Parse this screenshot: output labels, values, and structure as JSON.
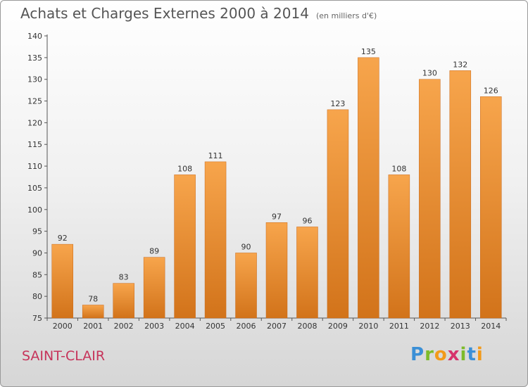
{
  "header": {
    "title": "Achats et Charges Externes 2000 à 2014",
    "unit": "(en milliers d'€)"
  },
  "footer": {
    "city": "SAINT-CLAIR",
    "brand": "Proxiti"
  },
  "colors": {
    "bar_light": "#f7a54c",
    "bar_dark": "#d2731a",
    "city": "#c6335a"
  },
  "chart_data": {
    "type": "bar",
    "title": "Achats et Charges Externes 2000 à 2014",
    "subtitle": "(en milliers d'€)",
    "xlabel": "",
    "ylabel": "",
    "categories": [
      "2000",
      "2001",
      "2002",
      "2003",
      "2004",
      "2005",
      "2006",
      "2007",
      "2008",
      "2009",
      "2010",
      "2011",
      "2012",
      "2013",
      "2014"
    ],
    "values": [
      92,
      78,
      83,
      89,
      108,
      111,
      90,
      97,
      96,
      123,
      135,
      108,
      130,
      132,
      126
    ],
    "ylim": [
      75,
      140
    ],
    "yticks": [
      75,
      80,
      85,
      90,
      95,
      100,
      105,
      110,
      115,
      120,
      125,
      130,
      135,
      140
    ],
    "grid": false,
    "legend": "none"
  }
}
